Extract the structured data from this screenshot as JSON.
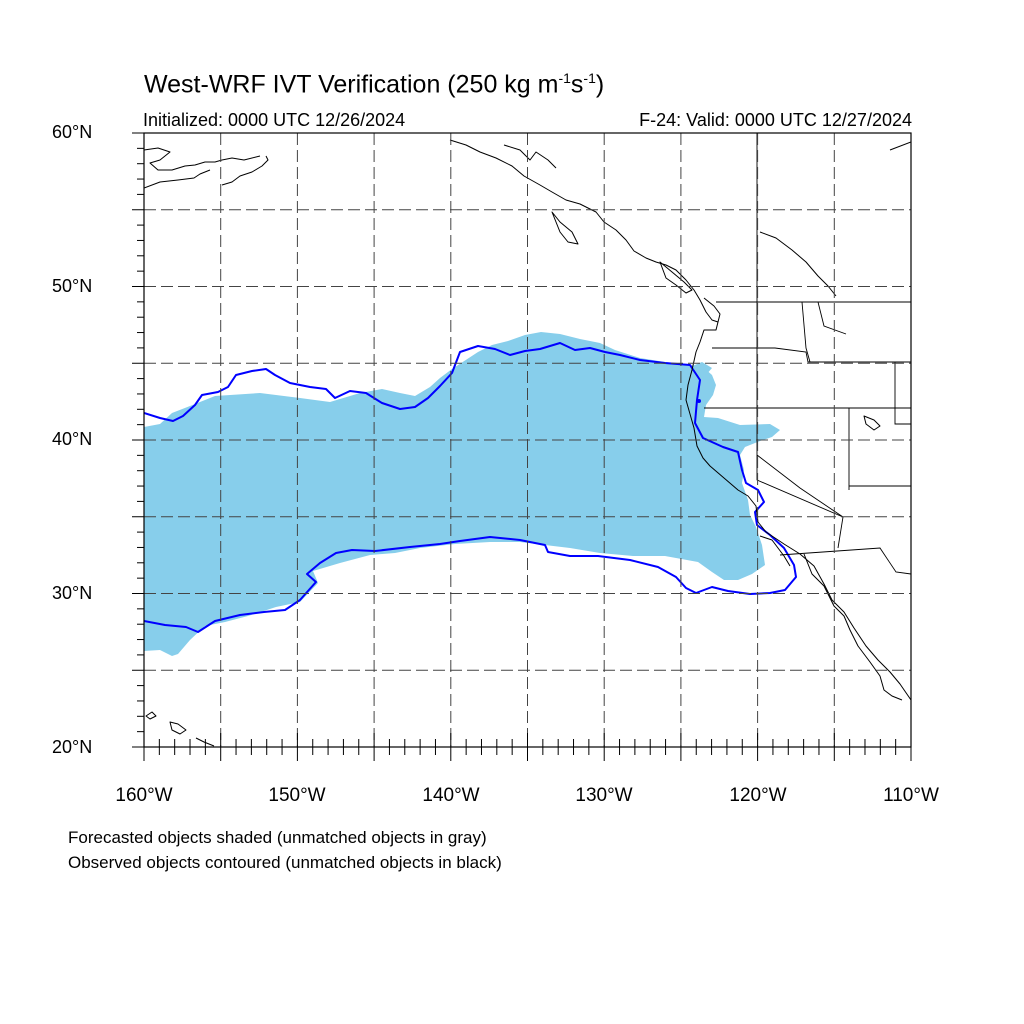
{
  "header": {
    "title": "West-WRF IVT Verification (250 kg m",
    "title_exp1": "-1",
    "title_mid": "s",
    "title_exp2": "-1",
    "title_end": ")",
    "initialized": "Initialized: 0000 UTC 12/26/2024",
    "valid": "F-24: Valid: 0000 UTC 12/27/2024"
  },
  "map": {
    "projection": "cylindrical equidistant",
    "lon_range": [
      -160,
      -110
    ],
    "lat_range": [
      20,
      60
    ],
    "grid_spacing_deg": 5,
    "grid_style": "dashed",
    "lat_labels": [
      "20°N",
      "30°N",
      "40°N",
      "50°N",
      "60°N"
    ],
    "lon_labels": [
      "160°W",
      "150°W",
      "140°W",
      "130°W",
      "120°W",
      "110°W"
    ],
    "colors": {
      "forecast_fill": "#87ceeb",
      "observed_contour": "#0000ff",
      "coastline": "#000000",
      "grid": "#444444"
    }
  },
  "legend": {
    "forecast_note": "Forecasted objects shaded (unmatched objects in gray)",
    "observed_note": "Observed objects contoured (unmatched objects in black)"
  }
}
